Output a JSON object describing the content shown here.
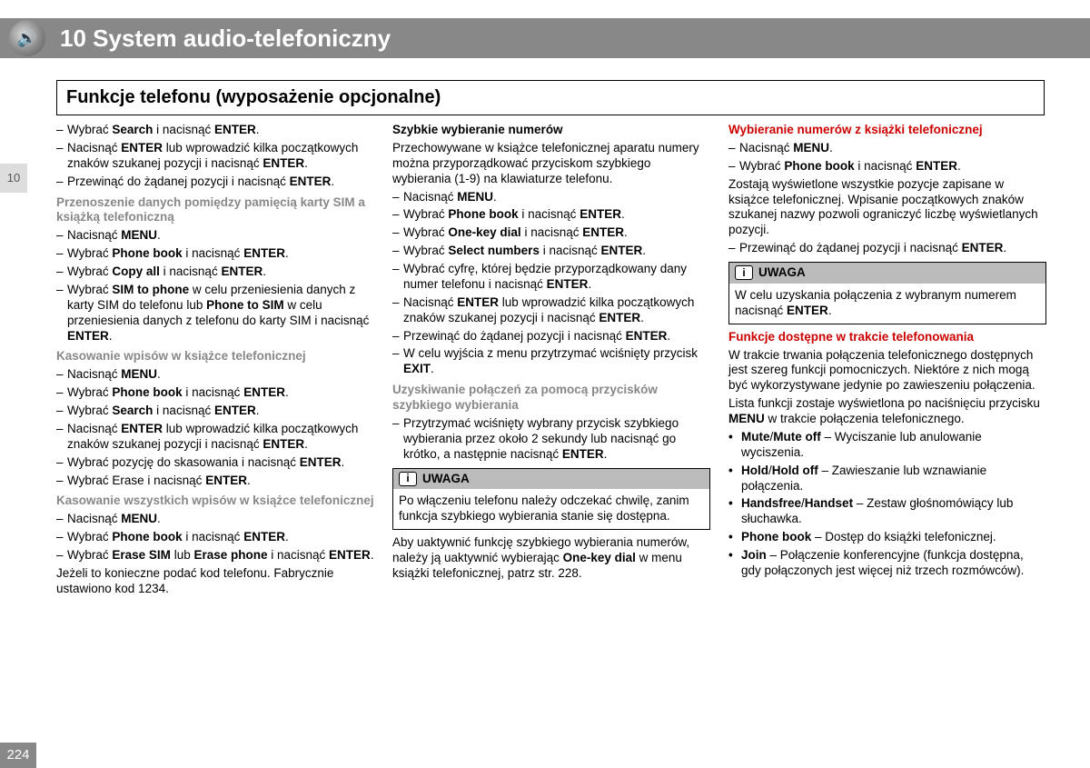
{
  "chapter_no": "10",
  "chapter_title": "System audio-telefoniczny",
  "section_title": "Funkcje telefonu (wyposażenie opcjonalne)",
  "side_tab": "10",
  "page_no": "224",
  "note_label": "UWAGA",
  "col1": {
    "i1": {
      "p": "Wybrać ",
      "b1": "Search",
      "m": " i nacisnąć ",
      "b2": "ENTER",
      "s": "."
    },
    "i2": {
      "p": "Nacisnąć ",
      "b1": "ENTER",
      "m": " lub wprowadzić kilka początkowych znaków szukanej pozycji i nacisnąć ",
      "b2": "ENTER",
      "s": "."
    },
    "i3": {
      "p": "Przewinąć do żądanej pozycji i nacisnąć ",
      "b1": "ENTER",
      "s": "."
    },
    "h1": "Przenoszenie danych pomiędzy pamięcią karty SIM a książką telefoniczną",
    "i4": {
      "p": "Nacisnąć ",
      "b1": "MENU",
      "s": "."
    },
    "i5": {
      "p": "Wybrać ",
      "b1": "Phone book",
      "m": " i nacisnąć ",
      "b2": "ENTER",
      "s": "."
    },
    "i6": {
      "p": "Wybrać ",
      "b1": "Copy all",
      "m": " i nacisnąć ",
      "b2": "ENTER",
      "s": "."
    },
    "i7": {
      "p": "Wybrać ",
      "b1": "SIM to phone",
      "m": " w celu przeniesienia danych z karty SIM do telefonu lub ",
      "b2": "Phone to SIM",
      "m2": " w celu przeniesienia danych z telefonu do karty SIM i nacisnąć ",
      "b3": "ENTER",
      "s": "."
    },
    "h2": "Kasowanie wpisów w książce telefonicznej",
    "i8": {
      "p": "Nacisnąć ",
      "b1": "MENU",
      "s": "."
    },
    "i9": {
      "p": "Wybrać ",
      "b1": "Phone book",
      "m": " i nacisnąć ",
      "b2": "ENTER",
      "s": "."
    },
    "i10": {
      "p": "Wybrać ",
      "b1": "Search",
      "m": " i nacisnąć ",
      "b2": "ENTER",
      "s": "."
    },
    "i11": {
      "p": "Nacisnąć ",
      "b1": "ENTER",
      "m": " lub wprowadzić kilka początkowych znaków szukanej pozycji i nacisnąć ",
      "b2": "ENTER",
      "s": "."
    },
    "i12": {
      "p": "Wybrać pozycję do skasowania i nacisnąć ",
      "b1": "ENTER",
      "s": "."
    },
    "i13": {
      "p": "Wybrać Erase i nacisnąć ",
      "b1": "ENTER",
      "s": "."
    },
    "h3": "Kasowanie wszystkich wpisów w książce telefonicznej",
    "i14": {
      "p": "Nacisnąć ",
      "b1": "MENU",
      "s": "."
    },
    "i15": {
      "p": "Wybrać ",
      "b1": "Phone book",
      "m": " i nacisnąć ",
      "b2": "ENTER",
      "s": "."
    },
    "i16": {
      "p": "Wybrać ",
      "b1": "Erase SIM",
      "m": " lub ",
      "b2": "Erase phone",
      "m2": " i nacisnąć ",
      "b3": "ENTER",
      "s": "."
    },
    "p_code": "Jeżeli to konieczne podać kod telefonu. Fabrycznie ustawiono kod 1234."
  },
  "col2": {
    "h1": "Szybkie wybieranie numerów",
    "p1": "Przechowywane w książce telefonicznej aparatu numery można przyporządkować przyciskom szybkiego wybierania (1-9) na klawiaturze telefonu.",
    "i1": {
      "p": "Nacisnąć ",
      "b1": "MENU",
      "s": "."
    },
    "i2": {
      "p": "Wybrać ",
      "b1": "Phone book",
      "m": " i nacisnąć ",
      "b2": "ENTER",
      "s": "."
    },
    "i3": {
      "p": "Wybrać ",
      "b1": "One-key dial",
      "m": " i nacisnąć ",
      "b2": "ENTER",
      "s": "."
    },
    "i4": {
      "p": "Wybrać ",
      "b1": "Select numbers",
      "m": " i nacisnąć ",
      "b2": "ENTER",
      "s": "."
    },
    "i5": {
      "p": "Wybrać cyfrę, której będzie przyporządkowany dany numer telefonu i nacisnąć ",
      "b1": "ENTER",
      "s": "."
    },
    "i6": {
      "p": "Nacisnąć ",
      "b1": "ENTER",
      "m": " lub wprowadzić kilka początkowych znaków szukanej pozycji i nacisnąć ",
      "b2": "ENTER",
      "s": "."
    },
    "i7": {
      "p": "Przewinąć do żądanej pozycji i nacisnąć ",
      "b1": "ENTER",
      "s": "."
    },
    "i8": {
      "p": "W celu wyjścia z menu przytrzymać wciśnięty przycisk ",
      "b1": "EXIT",
      "s": "."
    },
    "h2": "Uzyskiwanie połączeń za pomocą przycisków szybkiego wybierania",
    "i9": {
      "p": "Przytrzymać wciśnięty wybrany przycisk szybkiego wybierania przez około 2 sekundy lub nacisnąć go krótko, a następnie nacisnąć ",
      "b1": "ENTER",
      "s": "."
    },
    "note1": "Po włączeniu telefonu należy odczekać chwilę, zanim funkcja szybkiego wybierania stanie się dostępna.",
    "p2a": "Aby uaktywnić funkcję szybkiego wybierania numerów, należy ją uaktywnić wybierając ",
    "p2b": "One-key dial",
    "p2c": " w menu książki telefonicznej, patrz str. 228."
  },
  "col3": {
    "h1": "Wybieranie numerów z książki telefonicznej",
    "i1": {
      "p": "Nacisnąć ",
      "b1": "MENU",
      "s": "."
    },
    "i2": {
      "p": "Wybrać ",
      "b1": "Phone book",
      "m": " i nacisnąć ",
      "b2": "ENTER",
      "s": "."
    },
    "p1": "Zostają wyświetlone wszystkie pozycje zapisane w książce telefonicznej. Wpisanie początkowych znaków szukanej nazwy pozwoli ograniczyć liczbę wyświetlanych pozycji.",
    "i3": {
      "p": "Przewinąć do żądanej pozycji i nacisnąć ",
      "b1": "ENTER",
      "s": "."
    },
    "note1a": "W celu uzyskania połączenia z wybranym numerem nacisnąć ",
    "note1b": "ENTER",
    "note1c": ".",
    "h2": "Funkcje dostępne w trakcie telefonowania",
    "p2": "W trakcie trwania połączenia telefonicznego dostępnych jest szereg funkcji pomocniczych. Niektóre z nich mogą być wykorzystywane jedynie po zawieszeniu połączenia.",
    "p3a": "Lista funkcji zostaje wyświetlona po naciśnięciu przycisku ",
    "p3b": "MENU",
    "p3c": " w trakcie połączenia telefonicznego.",
    "b1": {
      "k1": "Mute",
      "sep": "/",
      "k2": "Mute off",
      "t": " – Wyciszanie lub anulowanie wyciszenia."
    },
    "b2": {
      "k1": "Hold",
      "sep": "/",
      "k2": "Hold off",
      "t": " – Zawieszanie lub wznawianie połączenia."
    },
    "b3": {
      "k1": "Handsfree",
      "sep": "/",
      "k2": "Handset",
      "t": " – Zestaw głośnomówiący lub słuchawka."
    },
    "b4": {
      "k": "Phone book",
      "t": " – Dostęp do książki telefonicznej."
    },
    "b5": {
      "k": "Join",
      "t": " – Połączenie konferencyjne (funkcja dostępna, gdy połączonych jest więcej niż trzech rozmówców)."
    }
  }
}
